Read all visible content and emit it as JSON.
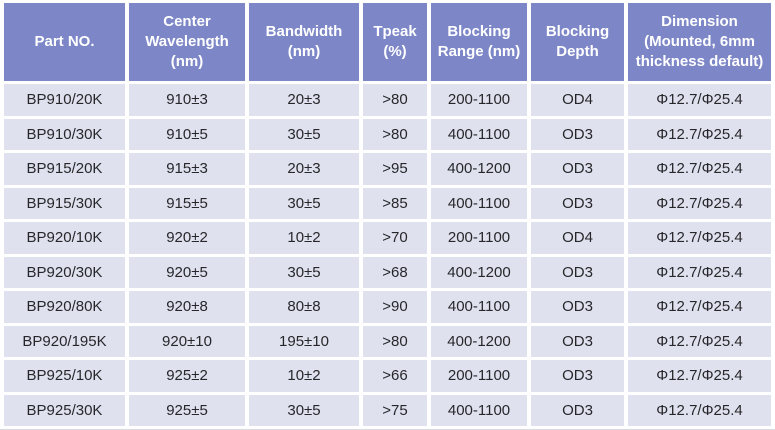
{
  "colors": {
    "header_bg": "#7d87c8",
    "header_text": "#ffffff",
    "row_bg": "#dfe1ee",
    "body_text": "#27272b",
    "grid_gap": "#ffffff"
  },
  "chart_data": {
    "type": "table",
    "columns": [
      "Part NO.",
      "Center Wavelength (nm)",
      "Bandwidth (nm)",
      "Tpeak (%)",
      "Blocking Range (nm)",
      "Blocking Depth",
      "Dimension (Mounted, 6mm thickness default)"
    ],
    "column_keys": [
      "part-no",
      "center-wavelength-nm",
      "bandwidth-nm",
      "tpeak-pct",
      "blocking-range-nm",
      "blocking-depth",
      "dimension"
    ],
    "rows": [
      [
        "BP910/20K",
        "910±3",
        "20±3",
        ">80",
        "200-1100",
        "OD4",
        "Φ12.7/Φ25.4"
      ],
      [
        "BP910/30K",
        "910±5",
        "30±5",
        ">80",
        "400-1100",
        "OD3",
        "Φ12.7/Φ25.4"
      ],
      [
        "BP915/20K",
        "915±3",
        "20±3",
        ">95",
        "400-1200",
        "OD3",
        "Φ12.7/Φ25.4"
      ],
      [
        "BP915/30K",
        "915±5",
        "30±5",
        ">85",
        "400-1100",
        "OD3",
        "Φ12.7/Φ25.4"
      ],
      [
        "BP920/10K",
        "920±2",
        "10±2",
        ">70",
        "200-1100",
        "OD4",
        "Φ12.7/Φ25.4"
      ],
      [
        "BP920/30K",
        "920±5",
        "30±5",
        ">68",
        "400-1200",
        "OD3",
        "Φ12.7/Φ25.4"
      ],
      [
        "BP920/80K",
        "920±8",
        "80±8",
        ">90",
        "400-1100",
        "OD3",
        "Φ12.7/Φ25.4"
      ],
      [
        "BP920/195K",
        "920±10",
        "195±10",
        ">80",
        "400-1200",
        "OD3",
        "Φ12.7/Φ25.4"
      ],
      [
        "BP925/10K",
        "925±2",
        "10±2",
        ">66",
        "200-1100",
        "OD3",
        "Φ12.7/Φ25.4"
      ],
      [
        "BP925/30K",
        "925±5",
        "30±5",
        ">75",
        "400-1100",
        "OD3",
        "Φ12.7/Φ25.4"
      ]
    ]
  }
}
